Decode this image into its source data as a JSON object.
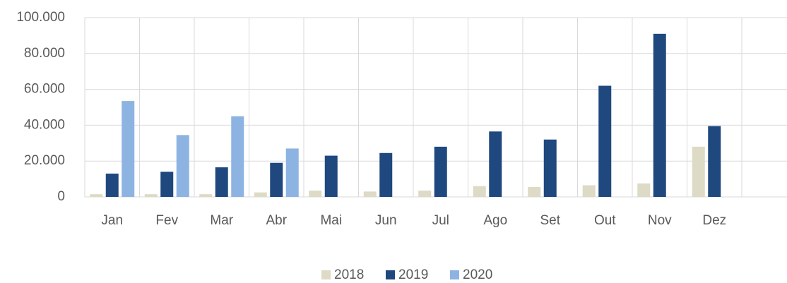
{
  "chart_data": {
    "type": "bar",
    "categories": [
      "Jan",
      "Fev",
      "Mar",
      "Abr",
      "Mai",
      "Jun",
      "Jul",
      "Ago",
      "Set",
      "Out",
      "Nov",
      "Dez"
    ],
    "series": [
      {
        "name": "2018",
        "color": "#dddac5",
        "values": [
          1500,
          1500,
          1500,
          2500,
          3500,
          3000,
          3500,
          6000,
          5500,
          6500,
          7500,
          28000
        ]
      },
      {
        "name": "2019",
        "color": "#1f487f",
        "values": [
          13000,
          14000,
          16500,
          19000,
          23000,
          24500,
          28000,
          36500,
          32000,
          62000,
          91000,
          39500
        ]
      },
      {
        "name": "2020",
        "color": "#8db3e2",
        "values": [
          53500,
          34500,
          45000,
          27000,
          null,
          null,
          null,
          null,
          null,
          null,
          null,
          null
        ]
      }
    ],
    "ylim": [
      0,
      100000
    ],
    "yticks": [
      0,
      {
        "value": 20000,
        "label": "20.000"
      },
      {
        "value": 40000,
        "label": "40.000"
      },
      {
        "value": 60000,
        "label": "60.000"
      },
      {
        "value": 80000,
        "label": "80.000"
      },
      {
        "value": 100000,
        "label": "100.000"
      }
    ],
    "grid": true,
    "legend": "bottom"
  }
}
